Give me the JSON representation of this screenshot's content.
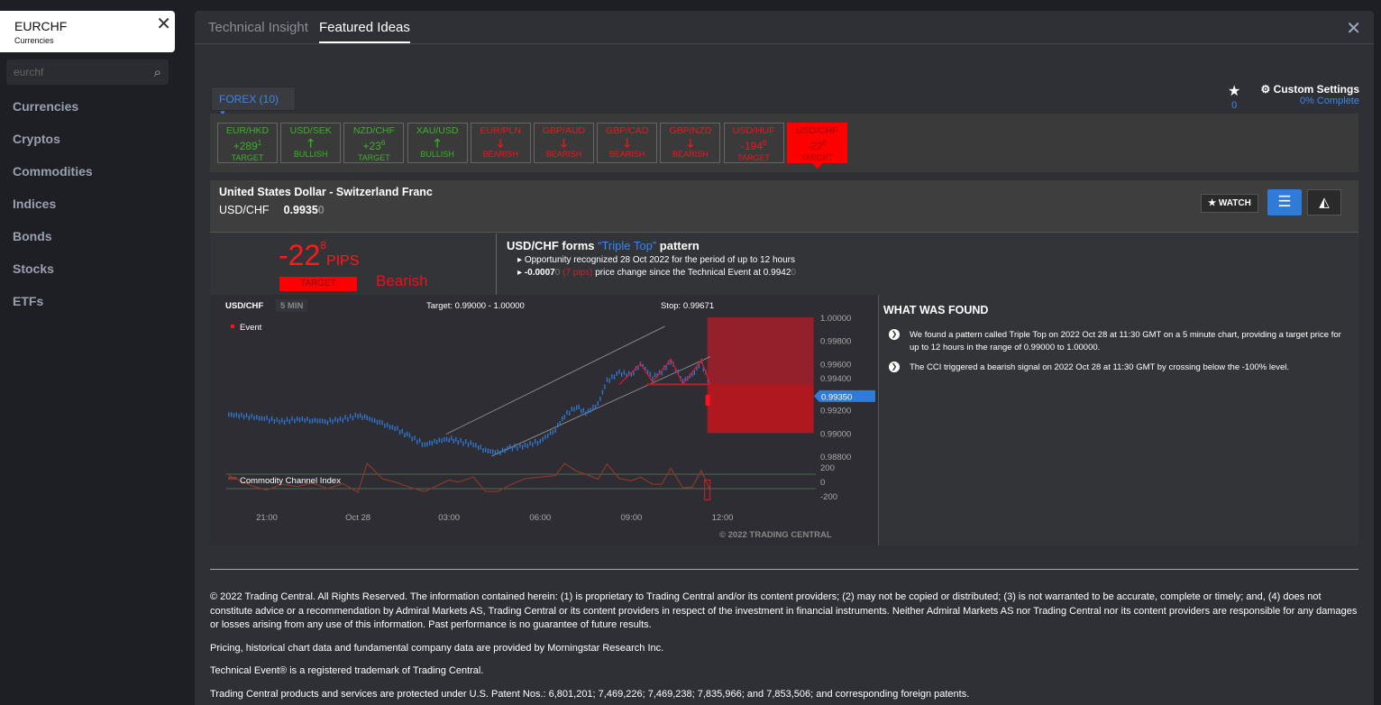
{
  "sidebar": {
    "symbol": "EURCHF",
    "category": "Currencies",
    "search_value": "eurchf",
    "items": [
      "Currencies",
      "Cryptos",
      "Commodities",
      "Indices",
      "Bonds",
      "Stocks",
      "ETFs"
    ]
  },
  "tabs": [
    "Technical Insight",
    "Featured Ideas"
  ],
  "forex_filter": "FOREX (10)",
  "watchlist_count": "0",
  "custom_settings": {
    "label": "Custom Settings",
    "progress": "0% Complete"
  },
  "ideas": [
    {
      "pair": "EUR/HKD",
      "value": "+289",
      "sup": "1",
      "label": "TARGET",
      "dir": "g"
    },
    {
      "pair": "USD/SEK",
      "arrow": "up",
      "label": "BULLISH",
      "dir": "g"
    },
    {
      "pair": "NZD/CHF",
      "value": "+23",
      "sup": "6",
      "label": "TARGET",
      "dir": "g"
    },
    {
      "pair": "XAU/USD",
      "arrow": "up",
      "label": "BULLISH",
      "dir": "g"
    },
    {
      "pair": "EUR/PLN",
      "arrow": "down",
      "label": "BEARISH",
      "dir": "r"
    },
    {
      "pair": "GBP/AUD",
      "arrow": "down",
      "label": "BEARISH",
      "dir": "r"
    },
    {
      "pair": "GBP/CAD",
      "arrow": "down",
      "label": "BEARISH",
      "dir": "r"
    },
    {
      "pair": "GBP/NZD",
      "arrow": "down",
      "label": "BEARISH",
      "dir": "r"
    },
    {
      "pair": "USD/HUF",
      "value": "-194",
      "sup": "8",
      "label": "TARGET",
      "dir": "r"
    },
    {
      "pair": "USD/CHF",
      "value": "-22",
      "sup": "8",
      "label": "TARGET",
      "dir": "r",
      "selected": true
    }
  ],
  "detail": {
    "name": "United States Dollar - Switzerland Franc",
    "pair": "USD/CHF",
    "price": "0.9935",
    "price_dim": "0",
    "watch": "WATCH",
    "pips": "-22",
    "pips_sup": "8",
    "pips_unit": "PIPS",
    "target": "TARGET",
    "bias": "Bearish",
    "pattern_pre": "USD/CHF forms ",
    "pattern_name": "“Triple Top”",
    "pattern_post": " pattern",
    "line1": "Opportunity recognized 28 Oct 2022 for the period of up to 12 hours",
    "line2_val": "-0.0007",
    "line2_dim": "0",
    "line2_pips": " (7 pips)",
    "line2_text": " price change since the Technical Event at 0.9942",
    "line2_dim2": "0",
    "found_title": "WHAT WAS FOUND",
    "found": [
      "We found a pattern called Triple Top on 2022 Oct 28 at 11:30 GMT on a 5 minute chart, providing a target price for up to 12 hours in the range of 0.99000 to 1.00000.",
      "The CCI triggered a bearish signal on 2022 Oct 28 at 11:30 GMT by crossing below the -100% level."
    ]
  },
  "chart_data": {
    "type": "line",
    "symbol": "USD/CHF",
    "interval": "5 MIN",
    "target_label": "Target: 0.99000 - 1.00000",
    "stop_label": "Stop: 0.99671",
    "legend": "Event",
    "indicator": "Commodity Channel Index",
    "copyright": "© 2022 TRADING CENTRAL",
    "current": "0.99350",
    "current_value": 0.9935,
    "target_range": [
      0.99,
      1.0
    ],
    "stop": 0.99671,
    "event_level": 0.9942,
    "ylim": [
      0.9876,
      1.0003
    ],
    "yticks": [
      "1.00000",
      "0.99800",
      "0.99600",
      "0.99400",
      "0.99200",
      "0.99000",
      "0.98800"
    ],
    "cci_ticks": [
      "200",
      "0",
      "-200"
    ],
    "xticks": [
      "21:00",
      "Oct 28",
      "03:00",
      "06:00",
      "09:00",
      "12:00"
    ],
    "x_hours_from_2100": [
      -1.25,
      -0.5,
      0,
      0.5,
      1,
      1.5,
      2,
      2.5,
      3,
      3.3,
      3.8,
      4.3,
      4.7,
      5.2,
      5.6,
      6,
      6.3,
      6.8,
      7.2,
      7.6,
      8,
      8.5,
      9,
      9.5,
      9.8,
      10.2,
      10.5,
      10.9,
      11.2,
      11.6,
      12,
      12.3,
      12.7,
      13,
      13.3,
      13.7,
      14,
      14.3,
      14.6
    ],
    "price": [
      0.9916,
      0.9914,
      0.9912,
      0.991,
      0.9912,
      0.9911,
      0.991,
      0.9912,
      0.9915,
      0.9913,
      0.9908,
      0.9903,
      0.9897,
      0.989,
      0.9893,
      0.9895,
      0.9893,
      0.989,
      0.9885,
      0.9883,
      0.9887,
      0.9889,
      0.9893,
      0.9903,
      0.9915,
      0.9923,
      0.9917,
      0.9925,
      0.9945,
      0.9952,
      0.995,
      0.996,
      0.9948,
      0.9953,
      0.9962,
      0.9945,
      0.995,
      0.9961,
      0.9942
    ],
    "cci": [
      80,
      -60,
      -120,
      -40,
      -70,
      -20,
      -100,
      -30,
      -150,
      250,
      40,
      -20,
      -80,
      -140,
      -60,
      20,
      -10,
      60,
      -140,
      -140,
      -50,
      40,
      60,
      80,
      250,
      140,
      100,
      30,
      240,
      40,
      10,
      60,
      -40,
      -40,
      180,
      -90,
      -80,
      150,
      -130
    ]
  },
  "footer": [
    "© 2022 Trading Central. All Rights Reserved. The information contained herein: (1) is proprietary to Trading Central and/or its content providers; (2) may not be copied or distributed; (3) is not warranted to be accurate, complete or timely; and, (4) does not constitute advice or a recommendation by Admiral Markets AS, Trading Central or its content providers in respect of the investment in financial instruments. Neither Admiral Markets AS nor Trading Central nor its content providers are responsible for any damages or losses arising from any use of this information. Past performance is no guarantee of future results.",
    "Pricing, historical chart data and fundamental company data are provided by Morningstar Research Inc.",
    "Technical Event® is a registered trademark of Trading Central.",
    "Trading Central products and services are protected under U.S. Patent Nos.: 6,801,201; 7,469,226; 7,469,238; 7,835,966; and 7,853,506; and corresponding foreign patents."
  ]
}
